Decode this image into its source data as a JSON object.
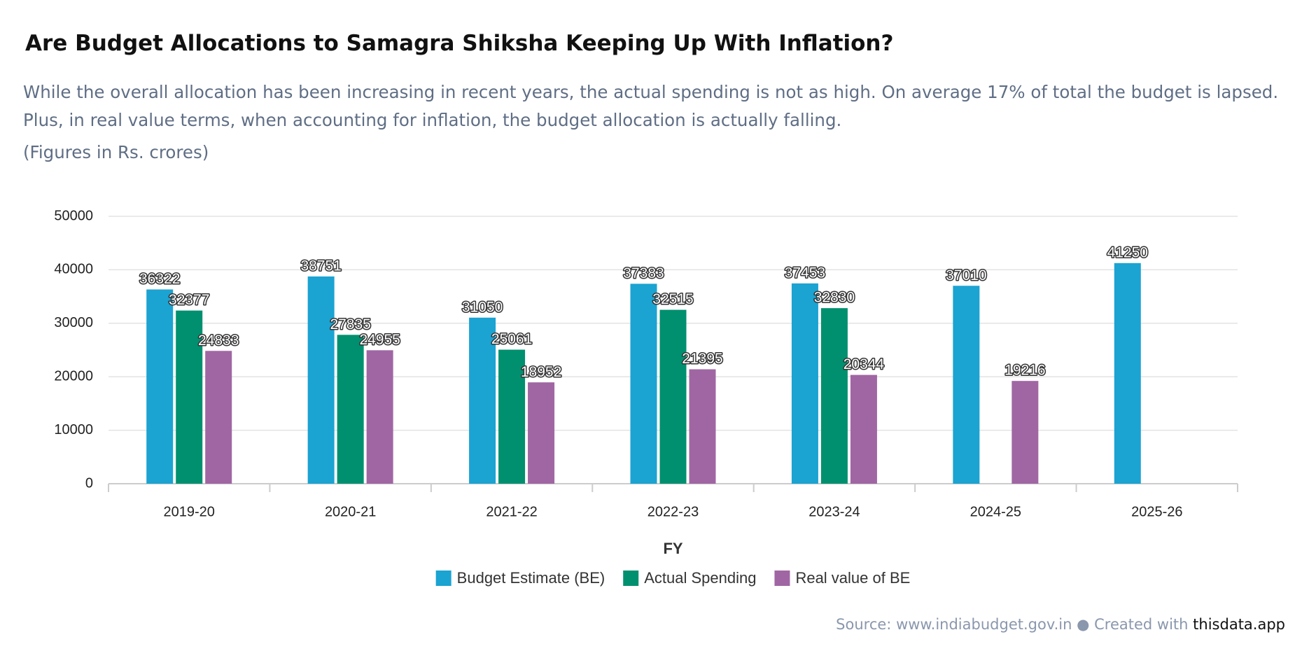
{
  "chart_data": {
    "type": "bar",
    "title": "Are Budget Allocations to Samagra Shiksha Keeping Up With Inflation?",
    "subtitle": "While the overall allocation has been increasing in recent years, the actual spending is not as high. On average 17% of total the budget is lapsed. Plus, in real value terms, when accounting for inflation, the budget allocation is actually falling.",
    "note": "(Figures in Rs. crores)",
    "x_label": "FY",
    "categories": [
      "2019-20",
      "2020-21",
      "2021-22",
      "2022-23",
      "2023-24",
      "2024-25",
      "2025-26"
    ],
    "series": [
      {
        "name": "Budget Estimate (BE)",
        "color": "#1ba3d2",
        "values": [
          36322,
          38751,
          31050,
          37383,
          37453,
          37010,
          41250
        ]
      },
      {
        "name": "Actual Spending",
        "color": "#00906f",
        "values": [
          32377,
          27835,
          25061,
          32515,
          32830,
          null,
          null
        ]
      },
      {
        "name": "Real value of BE",
        "color": "#a066a3",
        "values": [
          24833,
          24955,
          18952,
          21395,
          20344,
          19216,
          null
        ]
      }
    ],
    "ylim": [
      0,
      50000
    ],
    "yticks": [
      0,
      10000,
      20000,
      30000,
      40000,
      50000
    ],
    "grid": true,
    "source": {
      "label": "Source:",
      "url": "www.indiabudget.gov.in",
      "created": "Created with",
      "brand": "thisdata.app"
    }
  }
}
